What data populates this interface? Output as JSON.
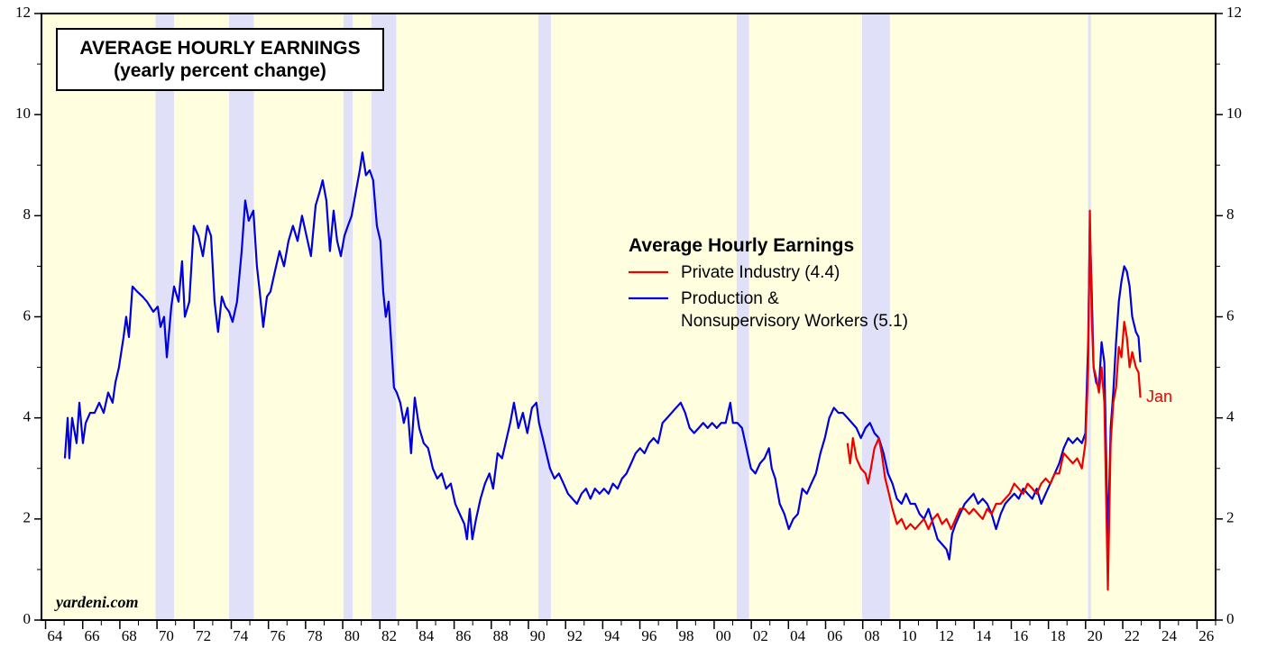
{
  "chart_data": {
    "type": "line",
    "title": "AVERAGE HOURLY EARNINGS",
    "subtitle": "(yearly percent change)",
    "legend_title": "Average Hourly Earnings",
    "annotation": "Jan",
    "source": "yardeni.com",
    "background": "#ffffe0",
    "recession_color": "#e0e0f8",
    "recessions": [
      [
        1969.92,
        1970.92
      ],
      [
        1973.88,
        1975.21
      ],
      [
        1980.04,
        1980.54
      ],
      [
        1981.54,
        1982.88
      ],
      [
        1990.54,
        1991.21
      ],
      [
        2001.21,
        2001.88
      ],
      [
        2007.96,
        2009.46
      ],
      [
        2020.13,
        2020.29
      ]
    ],
    "xlim": [
      1963.78,
      2027
    ],
    "ylim": [
      0,
      12
    ],
    "yticks": [
      0,
      2,
      4,
      6,
      8,
      10,
      12
    ],
    "xticks": [
      {
        "value": 1964,
        "label": "64"
      },
      {
        "value": 1966,
        "label": "66"
      },
      {
        "value": 1968,
        "label": "68"
      },
      {
        "value": 1970,
        "label": "70"
      },
      {
        "value": 1972,
        "label": "72"
      },
      {
        "value": 1974,
        "label": "74"
      },
      {
        "value": 1976,
        "label": "76"
      },
      {
        "value": 1978,
        "label": "78"
      },
      {
        "value": 1980,
        "label": "80"
      },
      {
        "value": 1982,
        "label": "82"
      },
      {
        "value": 1984,
        "label": "84"
      },
      {
        "value": 1986,
        "label": "86"
      },
      {
        "value": 1988,
        "label": "88"
      },
      {
        "value": 1990,
        "label": "90"
      },
      {
        "value": 1992,
        "label": "92"
      },
      {
        "value": 1994,
        "label": "94"
      },
      {
        "value": 1996,
        "label": "96"
      },
      {
        "value": 1998,
        "label": "98"
      },
      {
        "value": 2000,
        "label": "00"
      },
      {
        "value": 2002,
        "label": "02"
      },
      {
        "value": 2004,
        "label": "04"
      },
      {
        "value": 2006,
        "label": "06"
      },
      {
        "value": 2008,
        "label": "08"
      },
      {
        "value": 2010,
        "label": "10"
      },
      {
        "value": 2012,
        "label": "12"
      },
      {
        "value": 2014,
        "label": "14"
      },
      {
        "value": 2016,
        "label": "16"
      },
      {
        "value": 2018,
        "label": "18"
      },
      {
        "value": 2020,
        "label": "20"
      },
      {
        "value": 2022,
        "label": "22"
      },
      {
        "value": 2024,
        "label": "24"
      },
      {
        "value": 2026,
        "label": "26"
      }
    ],
    "series": [
      {
        "name": "Private Industry (4.4)",
        "color": "#ee0000",
        "x": [
          2007.18,
          2007.32,
          2007.47,
          2007.66,
          2007.9,
          2008.15,
          2008.29,
          2008.44,
          2008.63,
          2008.87,
          2009.02,
          2009.21,
          2009.41,
          2009.6,
          2009.84,
          2010.09,
          2010.33,
          2010.57,
          2010.82,
          2011.06,
          2011.3,
          2011.54,
          2011.79,
          2012.03,
          2012.27,
          2012.51,
          2012.76,
          2013.0,
          2013.24,
          2013.49,
          2013.73,
          2013.97,
          2014.21,
          2014.46,
          2014.7,
          2014.94,
          2015.18,
          2015.43,
          2015.67,
          2015.91,
          2016.16,
          2016.4,
          2016.64,
          2016.88,
          2017.13,
          2017.37,
          2017.61,
          2017.85,
          2018.1,
          2018.34,
          2018.58,
          2018.82,
          2019.07,
          2019.31,
          2019.55,
          2019.8,
          2019.99,
          2020.14,
          2020.23,
          2020.33,
          2020.43,
          2020.57,
          2020.72,
          2020.86,
          2021.01,
          2021.2,
          2021.35,
          2021.49,
          2021.64,
          2021.79,
          2021.93,
          2022.08,
          2022.22,
          2022.37,
          2022.51,
          2022.71,
          2022.85,
          2022.95
        ],
        "values": [
          3.5,
          3.1,
          3.6,
          3.2,
          3.0,
          2.9,
          2.7,
          3.0,
          3.4,
          3.6,
          3.3,
          2.8,
          2.5,
          2.2,
          1.9,
          2.0,
          1.8,
          1.9,
          1.8,
          1.9,
          2.0,
          1.8,
          2.0,
          2.1,
          1.9,
          2.0,
          1.8,
          2.0,
          2.2,
          2.2,
          2.1,
          2.2,
          2.1,
          2.0,
          2.2,
          2.1,
          2.3,
          2.3,
          2.4,
          2.5,
          2.7,
          2.6,
          2.5,
          2.7,
          2.6,
          2.5,
          2.7,
          2.8,
          2.7,
          2.9,
          2.9,
          3.3,
          3.2,
          3.1,
          3.2,
          3.0,
          3.5,
          5.0,
          8.1,
          6.0,
          5.0,
          4.8,
          4.5,
          5.0,
          4.3,
          0.6,
          3.5,
          4.3,
          4.6,
          5.4,
          5.2,
          5.9,
          5.6,
          5.0,
          5.3,
          5.0,
          4.9,
          4.4
        ]
      },
      {
        "name": "Production &\nNonsupervisory Workers (5.1)",
        "color": "#0000dd",
        "x": [
          1965.04,
          1965.19,
          1965.28,
          1965.43,
          1965.67,
          1965.82,
          1966.01,
          1966.16,
          1966.4,
          1966.64,
          1966.89,
          1967.13,
          1967.37,
          1967.61,
          1967.76,
          1967.95,
          1968.2,
          1968.34,
          1968.49,
          1968.68,
          1968.93,
          1969.22,
          1969.46,
          1969.8,
          1970.04,
          1970.19,
          1970.38,
          1970.53,
          1970.77,
          1970.92,
          1971.16,
          1971.35,
          1971.5,
          1971.74,
          1971.98,
          1972.23,
          1972.47,
          1972.71,
          1972.91,
          1973.1,
          1973.29,
          1973.49,
          1973.68,
          1973.88,
          1974.07,
          1974.31,
          1974.56,
          1974.75,
          1974.94,
          1975.19,
          1975.38,
          1975.53,
          1975.72,
          1975.92,
          1976.11,
          1976.35,
          1976.6,
          1976.84,
          1977.08,
          1977.32,
          1977.57,
          1977.81,
          1978.05,
          1978.29,
          1978.54,
          1978.78,
          1978.92,
          1979.12,
          1979.31,
          1979.51,
          1979.7,
          1979.9,
          1980.09,
          1980.28,
          1980.48,
          1980.72,
          1980.92,
          1981.06,
          1981.25,
          1981.45,
          1981.64,
          1981.84,
          1982.03,
          1982.18,
          1982.32,
          1982.47,
          1982.61,
          1982.76,
          1982.91,
          1983.1,
          1983.29,
          1983.49,
          1983.68,
          1983.88,
          1984.12,
          1984.36,
          1984.6,
          1984.85,
          1985.09,
          1985.33,
          1985.57,
          1985.82,
          1986.06,
          1986.3,
          1986.55,
          1986.69,
          1986.84,
          1986.98,
          1987.18,
          1987.42,
          1987.66,
          1987.9,
          1988.1,
          1988.34,
          1988.58,
          1988.83,
          1989.02,
          1989.22,
          1989.46,
          1989.7,
          1989.94,
          1990.19,
          1990.43,
          1990.57,
          1990.77,
          1990.96,
          1991.16,
          1991.4,
          1991.64,
          1991.89,
          1992.13,
          1992.37,
          1992.61,
          1992.86,
          1993.1,
          1993.34,
          1993.58,
          1993.83,
          1994.07,
          1994.31,
          1994.55,
          1994.8,
          1995.04,
          1995.28,
          1995.53,
          1995.77,
          1996.01,
          1996.25,
          1996.5,
          1996.74,
          1996.98,
          1997.22,
          1997.47,
          1997.71,
          1997.95,
          1998.2,
          1998.44,
          1998.68,
          1998.92,
          1999.17,
          1999.41,
          1999.65,
          1999.89,
          2000.14,
          2000.38,
          2000.62,
          2000.87,
          2001.01,
          2001.25,
          2001.5,
          2001.74,
          2001.98,
          2002.22,
          2002.47,
          2002.71,
          2002.95,
          2003.1,
          2003.29,
          2003.53,
          2003.78,
          2004.02,
          2004.26,
          2004.51,
          2004.75,
          2004.99,
          2005.23,
          2005.48,
          2005.72,
          2005.96,
          2006.2,
          2006.45,
          2006.69,
          2006.93,
          2007.18,
          2007.42,
          2007.66,
          2007.9,
          2008.15,
          2008.39,
          2008.63,
          2008.87,
          2009.12,
          2009.36,
          2009.6,
          2009.84,
          2010.09,
          2010.33,
          2010.57,
          2010.82,
          2011.06,
          2011.3,
          2011.54,
          2011.79,
          2012.03,
          2012.27,
          2012.51,
          2012.66,
          2012.81,
          2013.0,
          2013.24,
          2013.49,
          2013.73,
          2013.97,
          2014.21,
          2014.46,
          2014.7,
          2014.94,
          2015.18,
          2015.43,
          2015.67,
          2015.91,
          2016.16,
          2016.4,
          2016.64,
          2016.88,
          2017.13,
          2017.37,
          2017.61,
          2017.85,
          2018.1,
          2018.34,
          2018.58,
          2018.82,
          2019.07,
          2019.31,
          2019.55,
          2019.8,
          2019.99,
          2020.14,
          2020.23,
          2020.33,
          2020.43,
          2020.57,
          2020.72,
          2020.86,
          2021.01,
          2021.2,
          2021.35,
          2021.49,
          2021.64,
          2021.79,
          2021.93,
          2022.08,
          2022.22,
          2022.37,
          2022.51,
          2022.71,
          2022.85,
          2022.95
        ],
        "values": [
          3.2,
          4.0,
          3.2,
          4.0,
          3.5,
          4.3,
          3.5,
          3.9,
          4.1,
          4.1,
          4.3,
          4.1,
          4.5,
          4.3,
          4.7,
          5.0,
          5.6,
          6.0,
          5.6,
          6.6,
          6.5,
          6.4,
          6.3,
          6.1,
          6.2,
          5.8,
          6.0,
          5.2,
          6.2,
          6.6,
          6.3,
          7.1,
          6.0,
          6.3,
          7.8,
          7.6,
          7.2,
          7.8,
          7.6,
          6.3,
          5.7,
          6.4,
          6.2,
          6.1,
          5.9,
          6.3,
          7.3,
          8.3,
          7.9,
          8.1,
          7.0,
          6.5,
          5.8,
          6.4,
          6.5,
          6.9,
          7.3,
          7.0,
          7.5,
          7.8,
          7.5,
          8.0,
          7.6,
          7.2,
          8.2,
          8.5,
          8.7,
          8.3,
          7.3,
          8.1,
          7.5,
          7.2,
          7.6,
          7.8,
          8.0,
          8.5,
          8.9,
          9.25,
          8.8,
          8.9,
          8.7,
          7.8,
          7.5,
          6.5,
          6.0,
          6.3,
          5.5,
          4.6,
          4.5,
          4.3,
          3.9,
          4.2,
          3.3,
          4.4,
          3.8,
          3.5,
          3.4,
          3.0,
          2.8,
          2.9,
          2.6,
          2.7,
          2.3,
          2.1,
          1.9,
          1.6,
          2.2,
          1.6,
          2.0,
          2.4,
          2.7,
          2.9,
          2.6,
          3.3,
          3.2,
          3.6,
          3.9,
          4.3,
          3.8,
          4.1,
          3.7,
          4.2,
          4.3,
          3.9,
          3.6,
          3.3,
          3.0,
          2.8,
          2.9,
          2.7,
          2.5,
          2.4,
          2.3,
          2.5,
          2.6,
          2.4,
          2.6,
          2.5,
          2.6,
          2.5,
          2.7,
          2.6,
          2.8,
          2.9,
          3.1,
          3.3,
          3.4,
          3.3,
          3.5,
          3.6,
          3.5,
          3.9,
          4.0,
          4.1,
          4.2,
          4.3,
          4.1,
          3.8,
          3.7,
          3.8,
          3.9,
          3.8,
          3.9,
          3.8,
          3.9,
          3.9,
          4.3,
          3.9,
          3.9,
          3.8,
          3.4,
          3.0,
          2.9,
          3.1,
          3.2,
          3.4,
          3.0,
          2.8,
          2.3,
          2.1,
          1.8,
          2.0,
          2.1,
          2.6,
          2.5,
          2.7,
          2.9,
          3.3,
          3.6,
          4.0,
          4.2,
          4.1,
          4.1,
          4.0,
          3.9,
          3.8,
          3.6,
          3.8,
          3.9,
          3.7,
          3.6,
          3.3,
          2.9,
          2.7,
          2.4,
          2.3,
          2.5,
          2.3,
          2.3,
          2.1,
          2.0,
          2.2,
          1.9,
          1.6,
          1.5,
          1.4,
          1.2,
          1.7,
          1.9,
          2.1,
          2.3,
          2.4,
          2.5,
          2.3,
          2.4,
          2.3,
          2.1,
          1.8,
          2.1,
          2.3,
          2.4,
          2.5,
          2.4,
          2.6,
          2.5,
          2.4,
          2.6,
          2.3,
          2.5,
          2.7,
          2.9,
          3.1,
          3.4,
          3.6,
          3.5,
          3.6,
          3.5,
          3.7,
          5.5,
          7.8,
          6.5,
          5.0,
          4.7,
          4.6,
          5.5,
          5.1,
          1.5,
          3.8,
          4.5,
          5.5,
          6.3,
          6.7,
          7.0,
          6.9,
          6.6,
          6.0,
          5.7,
          5.6,
          5.1
        ]
      }
    ]
  }
}
